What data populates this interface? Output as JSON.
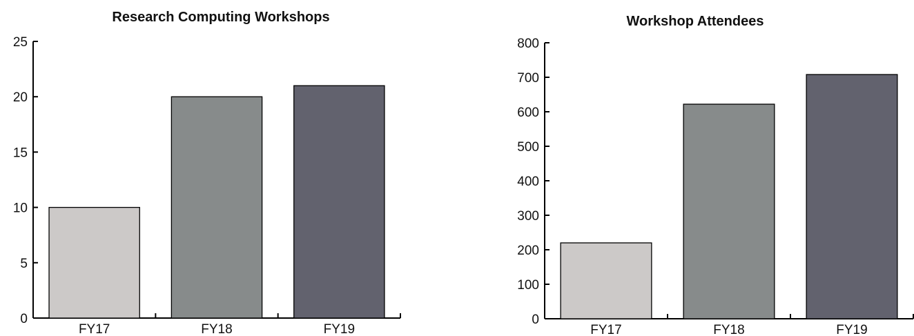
{
  "chart_data": [
    {
      "type": "bar",
      "title": "Research Computing Workshops",
      "xlabel": "",
      "ylabel": "",
      "categories": [
        "FY17",
        "FY18",
        "FY19"
      ],
      "values": [
        10,
        20,
        21
      ],
      "ylim": [
        0,
        25
      ],
      "yticks": [
        0,
        5,
        10,
        15,
        20,
        25
      ],
      "colors": [
        "#ccc9c8",
        "#878b8b",
        "#62626e"
      ],
      "grid": false
    },
    {
      "type": "bar",
      "title": "Workshop Attendees",
      "xlabel": "",
      "ylabel": "",
      "categories": [
        "FY17",
        "FY18",
        "FY19"
      ],
      "values": [
        220,
        622,
        708
      ],
      "ylim": [
        0,
        800
      ],
      "yticks": [
        0,
        100,
        200,
        300,
        400,
        500,
        600,
        700,
        800
      ],
      "colors": [
        "#ccc9c8",
        "#878b8b",
        "#62626e"
      ],
      "grid": false
    }
  ]
}
